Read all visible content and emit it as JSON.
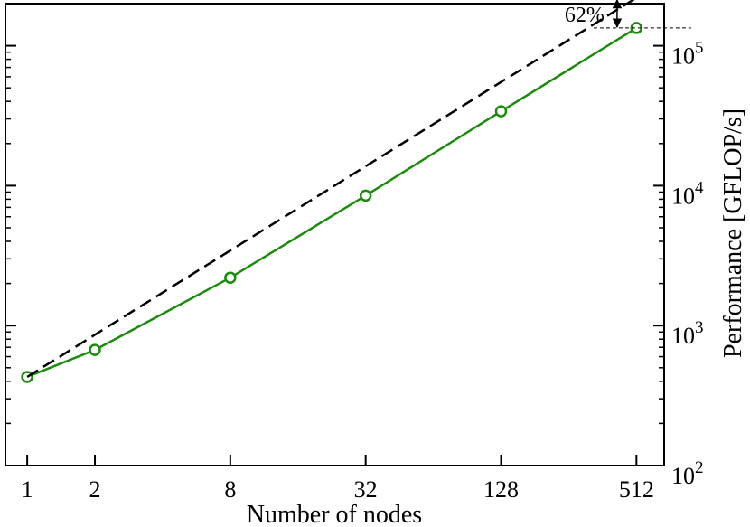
{
  "chart_data": {
    "type": "line",
    "xlabel": "Number of nodes",
    "ylabel": "Performance [GFLOP/s]",
    "x_scale": "log2",
    "y_scale": "log10",
    "xlim": [
      0.8,
      680
    ],
    "ylim": [
      100,
      200000
    ],
    "x_ticks": [
      1,
      2,
      8,
      32,
      128,
      512
    ],
    "x_tick_labels": [
      "1",
      "2",
      "8",
      "32",
      "128",
      "512"
    ],
    "y_ticks": [
      {
        "value": 100,
        "base": "10",
        "exp": "2"
      },
      {
        "value": 1000,
        "base": "10",
        "exp": "3"
      },
      {
        "value": 10000,
        "base": "10",
        "exp": "4"
      },
      {
        "value": 100000,
        "base": "10",
        "exp": "5"
      }
    ],
    "y_axis_side": "right",
    "grid": false,
    "series": [
      {
        "style": "solid",
        "color": "#1a8c0a",
        "marker": "circle",
        "x": [
          1,
          2,
          8,
          32,
          128,
          512
        ],
        "y": [
          430,
          670,
          2200,
          8500,
          34000,
          134000
        ]
      },
      {
        "style": "dashed",
        "color": "#000000",
        "marker": "none",
        "x": [
          1,
          630
        ],
        "y": [
          430,
          271000
        ]
      }
    ],
    "annotations": [
      {
        "text": "62%",
        "x": 420,
        "y_top": 216000,
        "y_bottom": 134000,
        "type": "double-arrow"
      }
    ]
  }
}
